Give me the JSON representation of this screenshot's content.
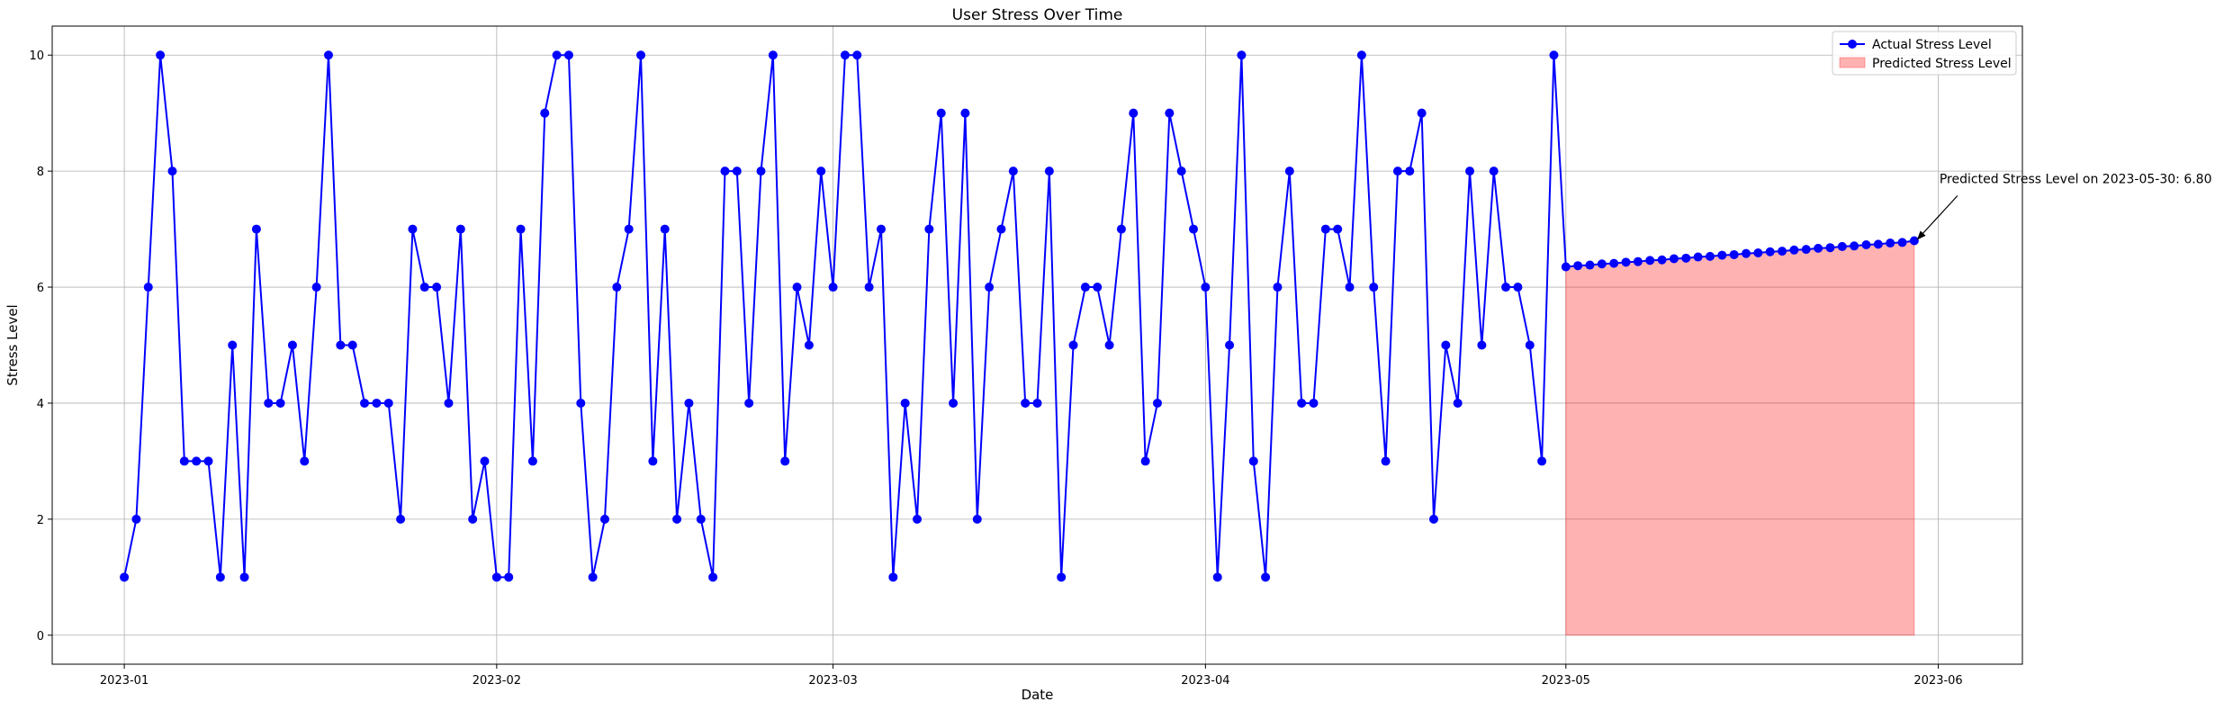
{
  "chart_data": {
    "type": "line",
    "title": "User Stress Over Time",
    "xlabel": "Date",
    "ylabel": "Stress Level",
    "xlim": [
      "2022-12-26",
      "2023-06-08"
    ],
    "ylim": [
      -0.5,
      10.5
    ],
    "grid": true,
    "legend_position": "top-right",
    "x_ticks": [
      "2023-01",
      "2023-02",
      "2023-03",
      "2023-04",
      "2023-05",
      "2023-06"
    ],
    "y_ticks": [
      0,
      2,
      4,
      6,
      8,
      10
    ],
    "series": [
      {
        "name": "Actual Stress Level",
        "kind": "line-markers",
        "color": "#0000ff",
        "x_start": "2023-01-01",
        "x_step_days": 1,
        "values": [
          1,
          2,
          6,
          10,
          8,
          3,
          3,
          3,
          1,
          5,
          1,
          7,
          4,
          4,
          5,
          3,
          6,
          10,
          5,
          5,
          4,
          4,
          4,
          2,
          7,
          6,
          6,
          4,
          7,
          2,
          3,
          1,
          1,
          7,
          3,
          9,
          10,
          10,
          4,
          1,
          2,
          6,
          7,
          10,
          3,
          7,
          2,
          4,
          2,
          1,
          8,
          8,
          4,
          8,
          10,
          3,
          6,
          5,
          8,
          6,
          10,
          10,
          6,
          7,
          1,
          4,
          2,
          7,
          9,
          4,
          9,
          2,
          6,
          7,
          8,
          4,
          4,
          8,
          1,
          5,
          6,
          6,
          5,
          7,
          9,
          3,
          4,
          9,
          8,
          7,
          6,
          1,
          5,
          10,
          3,
          1,
          6,
          8,
          4,
          4,
          7,
          7,
          6,
          10,
          6,
          3,
          8,
          8,
          9,
          2,
          5,
          4,
          8,
          5,
          8,
          6,
          6,
          5,
          3,
          10
        ]
      },
      {
        "name": "Predicted Stress Level",
        "kind": "area-with-markers",
        "color": "#0000ff",
        "fill_color": "#ff0000",
        "fill_opacity": 0.3,
        "x_start": "2023-05-01",
        "x_step_days": 1,
        "values": [
          6.35,
          6.37,
          6.38,
          6.4,
          6.41,
          6.43,
          6.44,
          6.46,
          6.47,
          6.49,
          6.5,
          6.52,
          6.53,
          6.55,
          6.56,
          6.58,
          6.59,
          6.61,
          6.62,
          6.64,
          6.65,
          6.67,
          6.68,
          6.7,
          6.71,
          6.73,
          6.74,
          6.76,
          6.77,
          6.8
        ]
      }
    ],
    "annotation": {
      "text": "Predicted Stress Level on 2023-05-30: 6.80",
      "x": "2023-05-30",
      "y": 6.8
    }
  }
}
